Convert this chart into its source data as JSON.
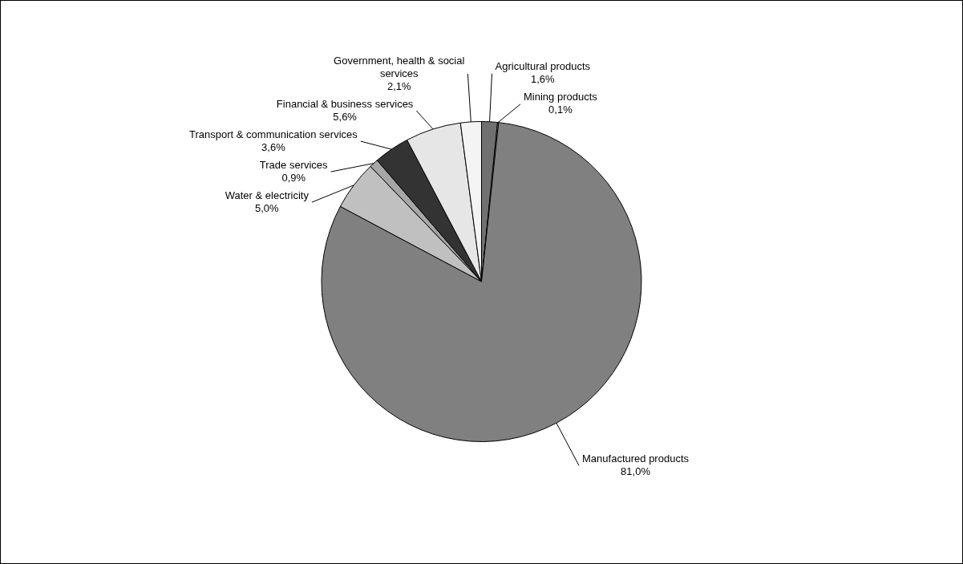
{
  "chart_data": {
    "type": "pie",
    "categories": [
      "Agricultural products",
      "Mining products",
      "Manufactured products",
      "Water & electricity",
      "Trade services",
      "Transport & communication services",
      "Financial & business services",
      "Government, health & social services"
    ],
    "values": [
      1.6,
      0.1,
      81.0,
      5.0,
      0.9,
      3.6,
      5.6,
      2.1
    ],
    "value_labels": [
      "1,6%",
      "0,1%",
      "81,0%",
      "5,0%",
      "0,9%",
      "3,6%",
      "5,6%",
      "2,1%"
    ],
    "colors": [
      "#707070",
      "#d9d9d9",
      "#808080",
      "#c0c0c0",
      "#a6a6a6",
      "#333333",
      "#e6e6e6",
      "#f4f4f4"
    ],
    "legend": false
  }
}
